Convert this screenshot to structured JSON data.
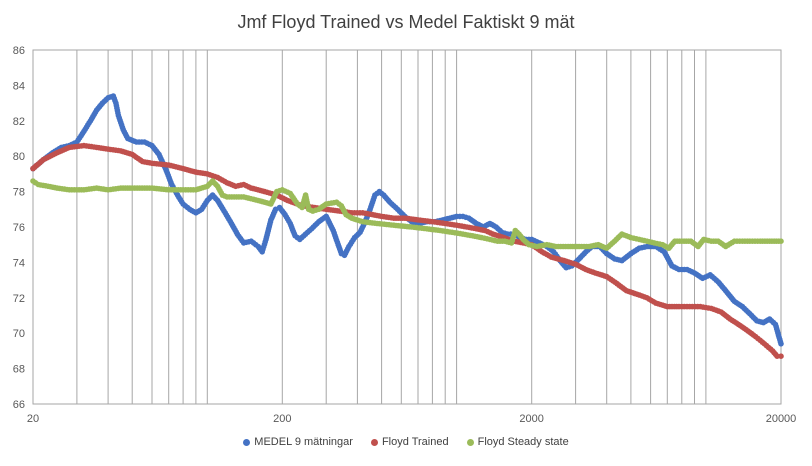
{
  "chart_data": {
    "type": "scatter",
    "title": "Jmf Floyd Trained vs Medel Faktiskt 9 mät",
    "xscale": "log",
    "xlim": [
      20,
      20000
    ],
    "ylim": [
      66,
      86
    ],
    "x_ticks": [
      20,
      200,
      2000,
      20000
    ],
    "y_ticks": [
      66,
      68,
      70,
      72,
      74,
      76,
      78,
      80,
      82,
      84,
      86
    ],
    "grid": "vertical log minor lines",
    "legend_position": "bottom",
    "series": [
      {
        "name": "MEDEL 9 mätningar",
        "color": "#4472C4",
        "points": [
          [
            20,
            79.3
          ],
          [
            22,
            79.8
          ],
          [
            24,
            80.2
          ],
          [
            26,
            80.5
          ],
          [
            28,
            80.6
          ],
          [
            30,
            80.8
          ],
          [
            32,
            81.4
          ],
          [
            34,
            82.0
          ],
          [
            36,
            82.6
          ],
          [
            38,
            83.0
          ],
          [
            40,
            83.3
          ],
          [
            42,
            83.4
          ],
          [
            43,
            83.0
          ],
          [
            44,
            82.3
          ],
          [
            46,
            81.5
          ],
          [
            48,
            81.0
          ],
          [
            52,
            80.8
          ],
          [
            56,
            80.8
          ],
          [
            60,
            80.6
          ],
          [
            64,
            80.1
          ],
          [
            68,
            79.3
          ],
          [
            72,
            78.4
          ],
          [
            76,
            77.8
          ],
          [
            80,
            77.3
          ],
          [
            85,
            77.0
          ],
          [
            90,
            76.8
          ],
          [
            95,
            77.0
          ],
          [
            100,
            77.5
          ],
          [
            105,
            77.8
          ],
          [
            110,
            77.5
          ],
          [
            118,
            76.8
          ],
          [
            125,
            76.2
          ],
          [
            132,
            75.6
          ],
          [
            140,
            75.1
          ],
          [
            150,
            75.2
          ],
          [
            160,
            74.9
          ],
          [
            166,
            74.6
          ],
          [
            172,
            75.3
          ],
          [
            180,
            76.4
          ],
          [
            188,
            77.0
          ],
          [
            195,
            77.1
          ],
          [
            205,
            76.7
          ],
          [
            215,
            76.2
          ],
          [
            225,
            75.5
          ],
          [
            235,
            75.3
          ],
          [
            248,
            75.6
          ],
          [
            262,
            75.9
          ],
          [
            280,
            76.3
          ],
          [
            300,
            76.6
          ],
          [
            320,
            75.8
          ],
          [
            335,
            75.0
          ],
          [
            345,
            74.5
          ],
          [
            355,
            74.4
          ],
          [
            370,
            74.9
          ],
          [
            390,
            75.4
          ],
          [
            410,
            75.7
          ],
          [
            430,
            76.3
          ],
          [
            450,
            77.0
          ],
          [
            470,
            77.8
          ],
          [
            490,
            78.0
          ],
          [
            510,
            77.8
          ],
          [
            540,
            77.4
          ],
          [
            580,
            77.0
          ],
          [
            620,
            76.6
          ],
          [
            660,
            76.3
          ],
          [
            700,
            76.2
          ],
          [
            760,
            76.3
          ],
          [
            820,
            76.3
          ],
          [
            880,
            76.4
          ],
          [
            940,
            76.5
          ],
          [
            1000,
            76.6
          ],
          [
            1060,
            76.6
          ],
          [
            1120,
            76.5
          ],
          [
            1200,
            76.2
          ],
          [
            1280,
            76.0
          ],
          [
            1360,
            76.2
          ],
          [
            1440,
            76.0
          ],
          [
            1520,
            75.7
          ],
          [
            1600,
            75.6
          ],
          [
            1700,
            75.6
          ],
          [
            1800,
            75.4
          ],
          [
            1900,
            75.3
          ],
          [
            2000,
            75.3
          ],
          [
            2150,
            75.1
          ],
          [
            2300,
            74.9
          ],
          [
            2450,
            74.6
          ],
          [
            2600,
            74.1
          ],
          [
            2750,
            73.7
          ],
          [
            2900,
            73.8
          ],
          [
            3100,
            74.2
          ],
          [
            3300,
            74.6
          ],
          [
            3500,
            74.9
          ],
          [
            3750,
            74.9
          ],
          [
            4000,
            74.5
          ],
          [
            4300,
            74.2
          ],
          [
            4600,
            74.1
          ],
          [
            5000,
            74.5
          ],
          [
            5400,
            74.8
          ],
          [
            5800,
            74.9
          ],
          [
            6300,
            74.9
          ],
          [
            6800,
            74.6
          ],
          [
            7300,
            73.8
          ],
          [
            7800,
            73.6
          ],
          [
            8400,
            73.6
          ],
          [
            9000,
            73.4
          ],
          [
            9700,
            73.1
          ],
          [
            10400,
            73.3
          ],
          [
            11200,
            72.9
          ],
          [
            12000,
            72.4
          ],
          [
            13000,
            71.8
          ],
          [
            14000,
            71.5
          ],
          [
            15000,
            71.1
          ],
          [
            16000,
            70.7
          ],
          [
            17000,
            70.6
          ],
          [
            18000,
            70.8
          ],
          [
            19000,
            70.5
          ],
          [
            20000,
            69.4
          ]
        ]
      },
      {
        "name": "Floyd Trained",
        "color": "#C0504D",
        "points": [
          [
            20,
            79.3
          ],
          [
            22,
            79.8
          ],
          [
            25,
            80.2
          ],
          [
            28,
            80.5
          ],
          [
            32,
            80.6
          ],
          [
            36,
            80.5
          ],
          [
            40,
            80.4
          ],
          [
            45,
            80.3
          ],
          [
            50,
            80.1
          ],
          [
            55,
            79.7
          ],
          [
            60,
            79.6
          ],
          [
            70,
            79.5
          ],
          [
            80,
            79.3
          ],
          [
            90,
            79.1
          ],
          [
            100,
            79.0
          ],
          [
            110,
            78.8
          ],
          [
            120,
            78.5
          ],
          [
            130,
            78.3
          ],
          [
            140,
            78.4
          ],
          [
            150,
            78.2
          ],
          [
            170,
            78.0
          ],
          [
            190,
            77.8
          ],
          [
            210,
            77.5
          ],
          [
            240,
            77.2
          ],
          [
            270,
            77.1
          ],
          [
            300,
            77.0
          ],
          [
            340,
            76.9
          ],
          [
            380,
            76.8
          ],
          [
            420,
            76.8
          ],
          [
            460,
            76.7
          ],
          [
            500,
            76.6
          ],
          [
            560,
            76.5
          ],
          [
            620,
            76.5
          ],
          [
            700,
            76.4
          ],
          [
            800,
            76.3
          ],
          [
            900,
            76.2
          ],
          [
            1000,
            76.1
          ],
          [
            1100,
            76.0
          ],
          [
            1200,
            75.9
          ],
          [
            1300,
            75.8
          ],
          [
            1400,
            75.6
          ],
          [
            1550,
            75.4
          ],
          [
            1700,
            75.2
          ],
          [
            1850,
            75.1
          ],
          [
            2000,
            75.0
          ],
          [
            2200,
            74.6
          ],
          [
            2400,
            74.3
          ],
          [
            2700,
            74.1
          ],
          [
            3000,
            73.9
          ],
          [
            3300,
            73.6
          ],
          [
            3600,
            73.4
          ],
          [
            4000,
            73.2
          ],
          [
            4400,
            72.8
          ],
          [
            4800,
            72.4
          ],
          [
            5300,
            72.2
          ],
          [
            5800,
            72.0
          ],
          [
            6300,
            71.7
          ],
          [
            7000,
            71.5
          ],
          [
            7800,
            71.5
          ],
          [
            8600,
            71.5
          ],
          [
            9500,
            71.5
          ],
          [
            10500,
            71.4
          ],
          [
            11500,
            71.2
          ],
          [
            12500,
            70.8
          ],
          [
            13500,
            70.5
          ],
          [
            14500,
            70.2
          ],
          [
            15500,
            69.9
          ],
          [
            16500,
            69.6
          ],
          [
            17500,
            69.3
          ],
          [
            18500,
            69.0
          ],
          [
            19300,
            68.7
          ],
          [
            20000,
            68.7
          ]
        ]
      },
      {
        "name": "Floyd Steady state",
        "color": "#9BBB59",
        "points": [
          [
            20,
            78.6
          ],
          [
            21,
            78.4
          ],
          [
            23,
            78.3
          ],
          [
            25,
            78.2
          ],
          [
            28,
            78.1
          ],
          [
            32,
            78.1
          ],
          [
            36,
            78.2
          ],
          [
            40,
            78.1
          ],
          [
            45,
            78.2
          ],
          [
            50,
            78.2
          ],
          [
            60,
            78.2
          ],
          [
            70,
            78.1
          ],
          [
            80,
            78.1
          ],
          [
            90,
            78.1
          ],
          [
            100,
            78.3
          ],
          [
            105,
            78.6
          ],
          [
            110,
            78.3
          ],
          [
            115,
            77.8
          ],
          [
            120,
            77.7
          ],
          [
            140,
            77.7
          ],
          [
            160,
            77.5
          ],
          [
            180,
            77.3
          ],
          [
            190,
            78.0
          ],
          [
            200,
            78.1
          ],
          [
            215,
            77.9
          ],
          [
            230,
            77.3
          ],
          [
            240,
            77.1
          ],
          [
            248,
            77.8
          ],
          [
            255,
            77.0
          ],
          [
            265,
            76.9
          ],
          [
            280,
            77.0
          ],
          [
            300,
            77.3
          ],
          [
            330,
            77.4
          ],
          [
            345,
            77.2
          ],
          [
            360,
            76.7
          ],
          [
            380,
            76.5
          ],
          [
            420,
            76.3
          ],
          [
            480,
            76.2
          ],
          [
            560,
            76.1
          ],
          [
            660,
            76.0
          ],
          [
            760,
            75.9
          ],
          [
            860,
            75.8
          ],
          [
            960,
            75.7
          ],
          [
            1060,
            75.6
          ],
          [
            1160,
            75.5
          ],
          [
            1260,
            75.4
          ],
          [
            1360,
            75.3
          ],
          [
            1460,
            75.2
          ],
          [
            1560,
            75.2
          ],
          [
            1660,
            75.1
          ],
          [
            1720,
            75.8
          ],
          [
            1780,
            75.6
          ],
          [
            1850,
            75.3
          ],
          [
            1950,
            75.0
          ],
          [
            2100,
            74.9
          ],
          [
            2300,
            75.0
          ],
          [
            2500,
            74.9
          ],
          [
            2800,
            74.9
          ],
          [
            3100,
            74.9
          ],
          [
            3400,
            74.9
          ],
          [
            3700,
            75.0
          ],
          [
            4000,
            74.8
          ],
          [
            4300,
            75.2
          ],
          [
            4600,
            75.6
          ],
          [
            5000,
            75.4
          ],
          [
            5400,
            75.3
          ],
          [
            5800,
            75.2
          ],
          [
            6200,
            75.1
          ],
          [
            6700,
            75.0
          ],
          [
            7100,
            74.8
          ],
          [
            7500,
            75.2
          ],
          [
            8000,
            75.2
          ],
          [
            8700,
            75.2
          ],
          [
            9300,
            74.9
          ],
          [
            9800,
            75.3
          ],
          [
            10500,
            75.2
          ],
          [
            11200,
            75.2
          ],
          [
            12000,
            74.9
          ],
          [
            13000,
            75.2
          ],
          [
            14000,
            75.2
          ],
          [
            15000,
            75.2
          ],
          [
            16500,
            75.2
          ],
          [
            18000,
            75.2
          ],
          [
            20000,
            75.2
          ]
        ]
      }
    ]
  }
}
